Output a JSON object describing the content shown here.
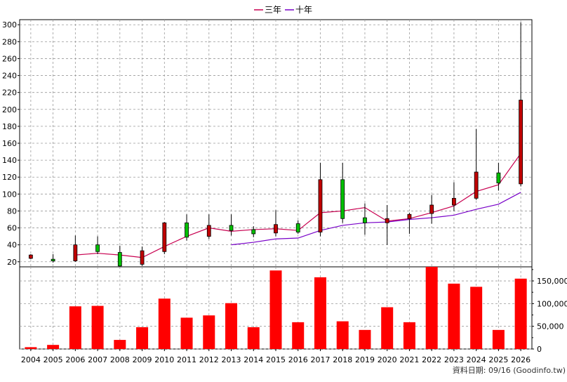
{
  "legend": [
    {
      "name": "三年",
      "color": "#c80050"
    },
    {
      "name": "十年",
      "color": "#7800c8"
    }
  ],
  "source_label": "資料日期: 09/16  (Goodinfo.tw)",
  "colors": {
    "up_candle": "#c00000",
    "down_candle": "#00c000",
    "volume_bar": "#ff0000",
    "grid": "#9a9a9a"
  },
  "chart_data": [
    {
      "type": "candlestick",
      "categories": [
        "2004",
        "2005",
        "2006",
        "2007",
        "2008",
        "2009",
        "2010",
        "2011",
        "2012",
        "2013",
        "2014",
        "2015",
        "2016",
        "2017",
        "2018",
        "2019",
        "2020",
        "2021",
        "2022",
        "2023",
        "2024",
        "2025",
        "2026"
      ],
      "ylim": [
        14,
        306
      ],
      "yticks": [
        20,
        40,
        60,
        80,
        100,
        120,
        140,
        160,
        180,
        200,
        220,
        240,
        260,
        280,
        300
      ],
      "grid": true,
      "candles": [
        {
          "x": "2004",
          "open": 24,
          "close": 28,
          "high": 29,
          "low": 23
        },
        {
          "x": "2005",
          "open": 23,
          "close": 21,
          "high": 29,
          "low": 19
        },
        {
          "x": "2006",
          "open": 21,
          "close": 40,
          "high": 51,
          "low": 20
        },
        {
          "x": "2007",
          "open": 40,
          "close": 32,
          "high": 50,
          "low": 29
        },
        {
          "x": "2008",
          "open": 31,
          "close": 15,
          "high": 39,
          "low": 14
        },
        {
          "x": "2009",
          "open": 17,
          "close": 33,
          "high": 38,
          "low": 15
        },
        {
          "x": "2010",
          "open": 32,
          "close": 66,
          "high": 67,
          "low": 29
        },
        {
          "x": "2011",
          "open": 66,
          "close": 49,
          "high": 76,
          "low": 45
        },
        {
          "x": "2012",
          "open": 50,
          "close": 63,
          "high": 76,
          "low": 47
        },
        {
          "x": "2013",
          "open": 63,
          "close": 57,
          "high": 76,
          "low": 51
        },
        {
          "x": "2014",
          "open": 58,
          "close": 53,
          "high": 62,
          "low": 49
        },
        {
          "x": "2015",
          "open": 54,
          "close": 64,
          "high": 81,
          "low": 50
        },
        {
          "x": "2016",
          "open": 65,
          "close": 55,
          "high": 69,
          "low": 53
        },
        {
          "x": "2017",
          "open": 55,
          "close": 117,
          "high": 137,
          "low": 50
        },
        {
          "x": "2018",
          "open": 117,
          "close": 71,
          "high": 137,
          "low": 66
        },
        {
          "x": "2019",
          "open": 72,
          "close": 66,
          "high": 89,
          "low": 52
        },
        {
          "x": "2020",
          "open": 66,
          "close": 71,
          "high": 87,
          "low": 40
        },
        {
          "x": "2021",
          "open": 71,
          "close": 76,
          "high": 78,
          "low": 53
        },
        {
          "x": "2022",
          "open": 77,
          "close": 87,
          "high": 99,
          "low": 65
        },
        {
          "x": "2023",
          "open": 87,
          "close": 95,
          "high": 114,
          "low": 80
        },
        {
          "x": "2024",
          "open": 95,
          "close": 126,
          "high": 177,
          "low": 93
        },
        {
          "x": "2025",
          "open": 125,
          "close": 113,
          "high": 137,
          "low": 104
        },
        {
          "x": "2026",
          "open": 112,
          "close": 211,
          "high": 303,
          "low": 109
        }
      ],
      "series": [
        {
          "name": "三年",
          "color": "#c80050",
          "points": [
            [
              "2006",
              28
            ],
            [
              "2007",
              30
            ],
            [
              "2008",
              28
            ],
            [
              "2009",
              25
            ],
            [
              "2010",
              38
            ],
            [
              "2011",
              50
            ],
            [
              "2012",
              60
            ],
            [
              "2013",
              56
            ],
            [
              "2014",
              58
            ],
            [
              "2015",
              59
            ],
            [
              "2016",
              57
            ],
            [
              "2017",
              78
            ],
            [
              "2018",
              80
            ],
            [
              "2019",
              84
            ],
            [
              "2020",
              68
            ],
            [
              "2021",
              71
            ],
            [
              "2022",
              78
            ],
            [
              "2023",
              86
            ],
            [
              "2024",
              103
            ],
            [
              "2025",
              111
            ],
            [
              "2026",
              148
            ]
          ]
        },
        {
          "name": "十年",
          "color": "#7800c8",
          "points": [
            [
              "2013",
              40
            ],
            [
              "2014",
              43
            ],
            [
              "2015",
              47
            ],
            [
              "2016",
              48
            ],
            [
              "2017",
              57
            ],
            [
              "2018",
              63
            ],
            [
              "2019",
              66
            ],
            [
              "2020",
              67
            ],
            [
              "2021",
              70
            ],
            [
              "2022",
              72
            ],
            [
              "2023",
              75
            ],
            [
              "2024",
              82
            ],
            [
              "2025",
              88
            ],
            [
              "2026",
              102
            ]
          ]
        }
      ]
    },
    {
      "type": "bar",
      "categories": [
        "2004",
        "2005",
        "2006",
        "2007",
        "2008",
        "2009",
        "2010",
        "2011",
        "2012",
        "2013",
        "2014",
        "2015",
        "2016",
        "2017",
        "2018",
        "2019",
        "2020",
        "2021",
        "2022",
        "2023",
        "2024",
        "2025",
        "2026"
      ],
      "values": [
        4000,
        9000,
        94000,
        95000,
        20000,
        48000,
        111000,
        69000,
        74000,
        101000,
        48000,
        173000,
        59000,
        158000,
        61000,
        42000,
        92000,
        59000,
        181000,
        144000,
        137000,
        42000,
        155000
      ],
      "ylim": [
        0,
        181000
      ],
      "yticks": [
        0,
        50000,
        100000,
        150000
      ],
      "ytick_labels": [
        "0",
        "50,000",
        "100,000",
        "150,000"
      ],
      "grid": true
    }
  ]
}
